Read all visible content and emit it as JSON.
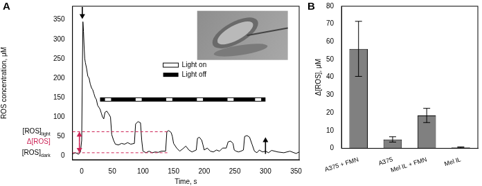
{
  "chart_data": [
    {
      "type": "line",
      "panel_label": "A",
      "x_label": "Time, s",
      "y_label": "ROS concentration, μM",
      "x": [
        -15,
        -10,
        -5,
        -2,
        0,
        1,
        2,
        3,
        4,
        5,
        6,
        8,
        10,
        12,
        14,
        16,
        18,
        20,
        22,
        24,
        26,
        28,
        30,
        32,
        34,
        36,
        38,
        41,
        44,
        47,
        49,
        52,
        55,
        60,
        65,
        70,
        75,
        80,
        86,
        88,
        92,
        96,
        98,
        100,
        105,
        110,
        115,
        120,
        125,
        130,
        137,
        139,
        142,
        146,
        148,
        150,
        155,
        160,
        165,
        170,
        175,
        180,
        187,
        189,
        192,
        196,
        198,
        200,
        205,
        210,
        215,
        220,
        225,
        230,
        236,
        239,
        243,
        247,
        249,
        252,
        256,
        260,
        264,
        266,
        270,
        274,
        278,
        282,
        286,
        290,
        295,
        300,
        305,
        310,
        320,
        330,
        340,
        350,
        355
      ],
      "values": [
        5,
        8,
        4,
        10,
        40,
        200,
        345,
        320,
        280,
        250,
        240,
        225,
        205,
        200,
        185,
        175,
        170,
        160,
        150,
        145,
        130,
        125,
        120,
        110,
        100,
        95,
        112,
        115,
        108,
        100,
        55,
        40,
        30,
        28,
        32,
        30,
        34,
        30,
        32,
        82,
        88,
        85,
        40,
        12,
        8,
        12,
        8,
        10,
        9,
        12,
        12,
        62,
        65,
        60,
        50,
        32,
        20,
        12,
        18,
        25,
        15,
        10,
        15,
        45,
        48,
        40,
        28,
        15,
        20,
        12,
        10,
        15,
        12,
        20,
        20,
        36,
        38,
        32,
        15,
        12,
        10,
        12,
        15,
        50,
        52,
        48,
        30,
        12,
        8,
        15,
        10,
        12,
        8,
        14,
        10,
        8,
        12,
        6,
        10
      ],
      "color": "#000000",
      "xlim": [
        -15,
        355
      ],
      "xticks": [
        0,
        50,
        100,
        150,
        200,
        250,
        300,
        350
      ],
      "ylim": [
        -10,
        385
      ],
      "yticks": [
        0,
        50,
        100,
        150,
        200,
        250,
        300,
        350
      ],
      "grid": false,
      "light_bar": {
        "y": 145,
        "start": 30,
        "end": 300,
        "on_periods": [
          [
            38,
            48
          ],
          [
            88,
            98
          ],
          [
            138,
            148
          ],
          [
            188,
            198
          ],
          [
            238,
            248
          ],
          [
            283,
            293
          ]
        ]
      },
      "light_legend": {
        "on": "Light on",
        "off": "Light off"
      },
      "levels": [
        {
          "label": "[ROS]",
          "subscript": "light",
          "value": 62
        },
        {
          "label": "[ROS]",
          "subscript": "dark",
          "value": 8
        }
      ],
      "level_line_end": 140,
      "level_color": "#cc2255",
      "delta_label": "Δ[ROS]",
      "arrows": [
        {
          "x": 1,
          "from": 383,
          "to": 352
        },
        {
          "x": 300,
          "from": 5,
          "to": 48
        }
      ]
    },
    {
      "type": "bar",
      "panel_label": "B",
      "y_label": "Δ[ROS], μM",
      "categories": [
        "A375 + FMN",
        "A375",
        "Mel IL + FMN",
        "Mel IL"
      ],
      "values": [
        56,
        5,
        18.5,
        0.5
      ],
      "errors": [
        15.5,
        1.5,
        4,
        0.3
      ],
      "color": "#808080",
      "ylim": [
        0,
        80
      ],
      "yticks": [
        0,
        10,
        20,
        30,
        40,
        50,
        60,
        70,
        80
      ],
      "grid": false
    }
  ]
}
